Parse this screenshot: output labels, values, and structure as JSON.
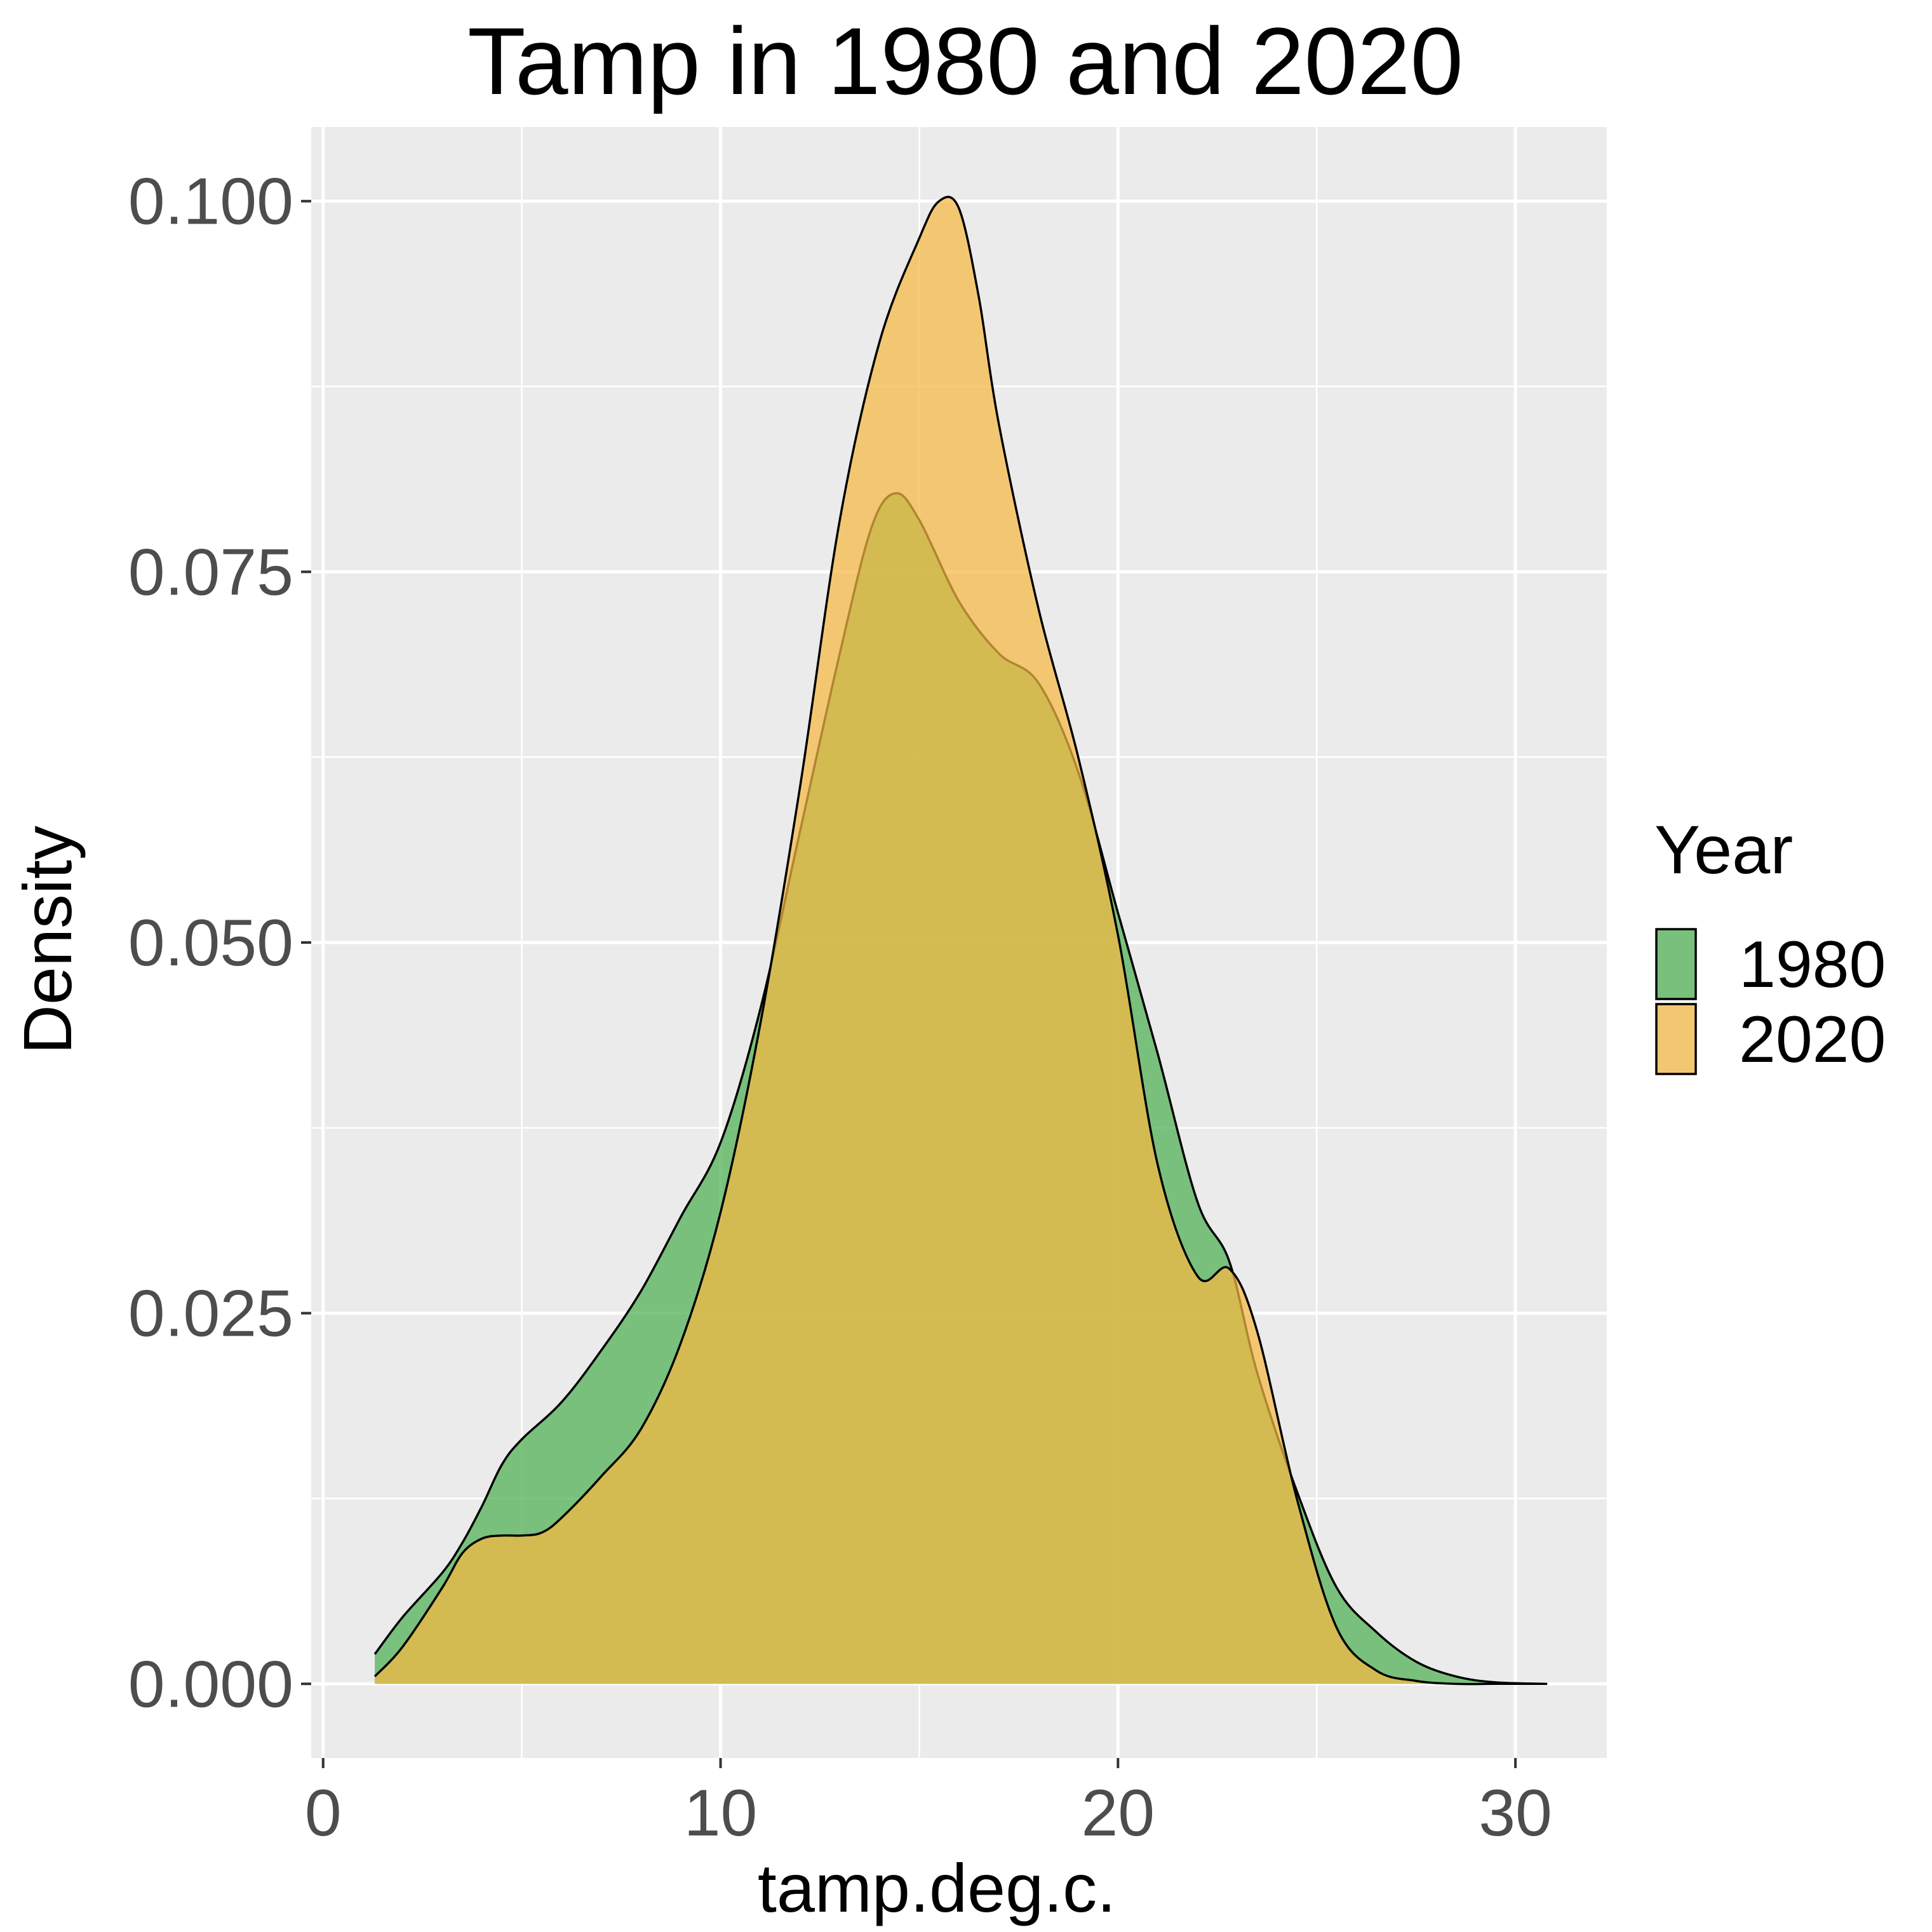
{
  "chart_data": {
    "type": "area",
    "title": "Tamp in 1980 and 2020",
    "xlabel": "tamp.deg.c.",
    "ylabel": "Density",
    "xlim": [
      -0.3,
      32.3
    ],
    "ylim": [
      -0.005,
      0.105
    ],
    "x_ticks": [
      0,
      10,
      20,
      30
    ],
    "x_tick_labels": [
      "0",
      "10",
      "20",
      "30"
    ],
    "y_ticks": [
      0.0,
      0.025,
      0.05,
      0.075,
      0.1
    ],
    "y_tick_labels": [
      "0.000",
      "0.025",
      "0.050",
      "0.075",
      "0.100"
    ],
    "x_minor_ticks": [
      5,
      15,
      25
    ],
    "y_minor_ticks": [
      0.0125,
      0.0375,
      0.0625,
      0.0875
    ],
    "grid": true,
    "panel_background": "#ebebeb",
    "grid_color": "#ffffff",
    "legend": {
      "title": "Year",
      "position": "right"
    },
    "series": [
      {
        "name": "1980",
        "color": "#4caf50",
        "fill_opacity": 0.72,
        "x": [
          1.3,
          2.0,
          3.0,
          3.5,
          4.0,
          4.5,
          5.0,
          6.0,
          7.0,
          8.0,
          9.0,
          10.0,
          11.0,
          12.0,
          13.0,
          13.8,
          14.4,
          15.0,
          16.0,
          17.0,
          18.0,
          19.0,
          20.0,
          21.0,
          22.0,
          22.8,
          23.5,
          24.5,
          25.5,
          26.5,
          27.5,
          28.5,
          29.5,
          30.8
        ],
        "values": [
          0.002,
          0.0045,
          0.0075,
          0.0095,
          0.012,
          0.0148,
          0.0165,
          0.019,
          0.0225,
          0.0265,
          0.0315,
          0.0365,
          0.0455,
          0.0575,
          0.0695,
          0.078,
          0.0803,
          0.0785,
          0.073,
          0.0695,
          0.0675,
          0.0615,
          0.052,
          0.0425,
          0.0325,
          0.0285,
          0.021,
          0.013,
          0.0065,
          0.0035,
          0.0015,
          0.0005,
          0.0001,
          0.0
        ]
      },
      {
        "name": "2020",
        "color": "#f5b942",
        "fill_opacity": 0.72,
        "x": [
          1.3,
          2.0,
          3.0,
          3.5,
          4.0,
          4.5,
          5.0,
          5.5,
          6.0,
          7.0,
          8.0,
          9.0,
          10.0,
          11.0,
          12.0,
          13.0,
          14.0,
          15.0,
          15.5,
          16.0,
          16.5,
          17.0,
          18.0,
          19.0,
          20.0,
          21.0,
          22.0,
          22.8,
          23.5,
          24.5,
          25.5,
          26.5,
          27.5,
          28.5,
          29.5,
          30.8
        ],
        "values": [
          0.0005,
          0.0025,
          0.0065,
          0.0088,
          0.0098,
          0.01,
          0.01,
          0.0102,
          0.0112,
          0.014,
          0.0172,
          0.023,
          0.0318,
          0.0445,
          0.0605,
          0.0785,
          0.0905,
          0.0975,
          0.1,
          0.0995,
          0.0935,
          0.085,
          0.0725,
          0.0625,
          0.0505,
          0.035,
          0.0275,
          0.028,
          0.0238,
          0.0125,
          0.0038,
          0.0009,
          0.0002,
          0.0,
          0.0,
          0.0
        ]
      }
    ]
  }
}
